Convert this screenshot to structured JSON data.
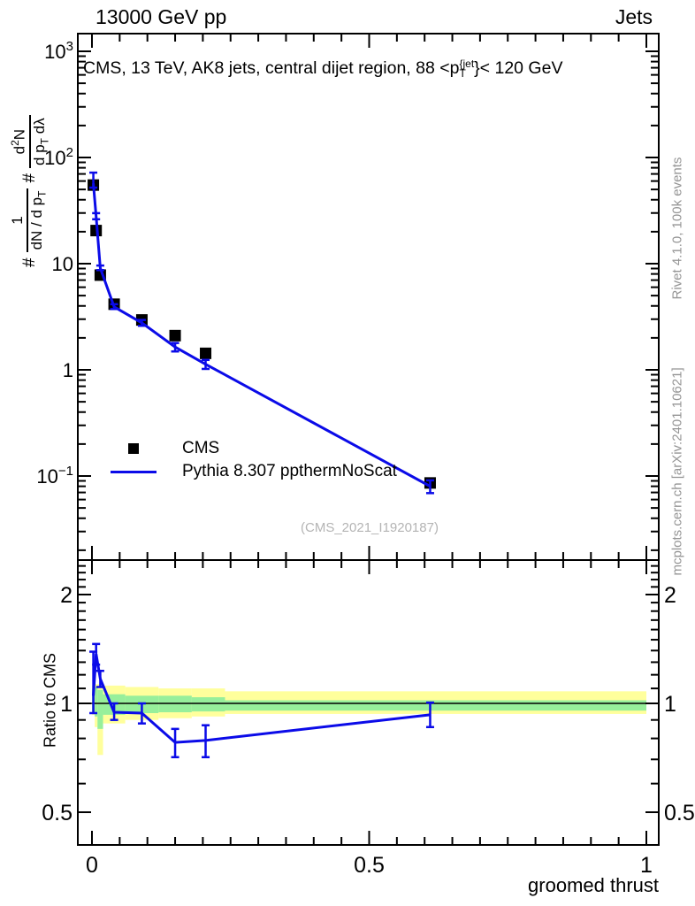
{
  "header": {
    "left": "13000 GeV pp",
    "right": "Jets"
  },
  "plot_title_html": "CMS, 13 TeV, AK8 jets, central dijet region, 88 &lt;p<span class='stk'><span>{jet</span><span>T</span></span>}&lt; 120 GeV",
  "y_axis_title_html": "# <span class='frac'><span class='fn'>1</span><span class='fd'>dN / d p<sub>T</sub></span></span> <span>#</span> <span class='frac'><span class='fn'>d<sup>2</sup>N</span><span class='fd'>d p<sub>T</sub> dλ</span></span>",
  "watermark": "(CMS_2021_I1920187)",
  "side_notes": {
    "top": "Rivet 4.1.0,  100k events",
    "bottom": "mcplots.cern.ch [arXiv:2401.10621]"
  },
  "legend": [
    {
      "label": "CMS",
      "marker": "square",
      "color": "#000000"
    },
    {
      "label": "Pythia 8.307 ppthermNoScat",
      "marker": "line",
      "color": "#0b0be8"
    }
  ],
  "colors": {
    "mc_line": "#0b0be8",
    "band_yellow": "#ffff9c",
    "band_green": "#97ef9b",
    "gray_text": "#959595"
  },
  "chart_data": {
    "type": "line",
    "title": "CMS, 13 TeV, AK8 jets, central dijet region, 88 < pT{jet} < 120 GeV",
    "xlabel": "groomed thrust",
    "xlim": [
      -0.0255,
      1.0215
    ],
    "x_ticks": [
      {
        "v": 0,
        "label": "0"
      },
      {
        "v": 0.5,
        "label": "0.5"
      },
      {
        "v": 1,
        "label": "1"
      }
    ],
    "x_minor_step": 0.05,
    "main_panel": {
      "ylog": true,
      "ylim": [
        0.0162,
        1470
      ],
      "y_ticks": [
        {
          "v": 1000,
          "base": "10",
          "exp": "3"
        },
        {
          "v": 100,
          "base": "10",
          "exp": "2"
        },
        {
          "v": 10,
          "base": "10",
          "exp": null
        },
        {
          "v": 1,
          "base": "1",
          "exp": null
        },
        {
          "v": 0.1,
          "base": "10",
          "exp": "−1"
        }
      ],
      "series": [
        {
          "name": "CMS",
          "type": "scatter",
          "marker": "square",
          "color": "#000000",
          "x": [
            0.0025,
            0.0075,
            0.015,
            0.04,
            0.09,
            0.15,
            0.205,
            0.61
          ],
          "y": [
            55,
            20.5,
            7.8,
            4.15,
            2.95,
            2.1,
            1.43,
            0.086
          ]
        },
        {
          "name": "Pythia 8.307 ppthermNoScat",
          "type": "line",
          "color": "#0b0be8",
          "x": [
            0.0025,
            0.0075,
            0.015,
            0.04,
            0.09,
            0.15,
            0.205,
            0.61
          ],
          "y": [
            57,
            28,
            9.1,
            3.92,
            2.77,
            1.64,
            1.13,
            0.08
          ],
          "y_lo": [
            52,
            26.2,
            8.7,
            3.74,
            2.6,
            1.49,
            1.02,
            0.069
          ],
          "y_hi": [
            72,
            29.9,
            9.6,
            4.15,
            2.95,
            1.79,
            1.24,
            0.091
          ]
        }
      ]
    },
    "ratio_panel": {
      "ylabel": "Ratio to CMS",
      "ylog": true,
      "ylim": [
        0.406,
        2.49
      ],
      "y_ticks": [
        {
          "v": 2,
          "label": "2"
        },
        {
          "v": 1,
          "label": "1"
        },
        {
          "v": 0.5,
          "label": "0.5"
        }
      ],
      "y_minor_from": 0.4,
      "y_minor_to": 2.4,
      "y_minor_step": 0.1,
      "ratio": {
        "x": [
          0.0025,
          0.0075,
          0.015,
          0.04,
          0.09,
          0.15,
          0.205,
          0.61
        ],
        "r": [
          1.05,
          1.37,
          1.17,
          0.945,
          0.94,
          0.78,
          0.79,
          0.93
        ],
        "r_lo": [
          0.94,
          1.28,
          1.11,
          0.9,
          0.88,
          0.71,
          0.71,
          0.86
        ],
        "r_hi": [
          1.39,
          1.46,
          1.23,
          1.0,
          1.0,
          0.85,
          0.87,
          1.005
        ]
      },
      "bands": {
        "edges": [
          0,
          0.005,
          0.01,
          0.02,
          0.06,
          0.12,
          0.18,
          0.24,
          1.0
        ],
        "yellow": [
          [
            0.93,
            1.12
          ],
          [
            0.86,
            1.13
          ],
          [
            0.72,
            1.13
          ],
          [
            0.88,
            1.12
          ],
          [
            0.9,
            1.11
          ],
          [
            0.91,
            1.1
          ],
          [
            0.92,
            1.1
          ],
          [
            0.935,
            1.08
          ]
        ],
        "green": [
          [
            0.95,
            1.1
          ],
          [
            0.92,
            1.11
          ],
          [
            0.85,
            1.09
          ],
          [
            0.93,
            1.06
          ],
          [
            0.94,
            1.05
          ],
          [
            0.945,
            1.05
          ],
          [
            0.95,
            1.04
          ],
          [
            0.955,
            1.02
          ]
        ]
      }
    }
  }
}
